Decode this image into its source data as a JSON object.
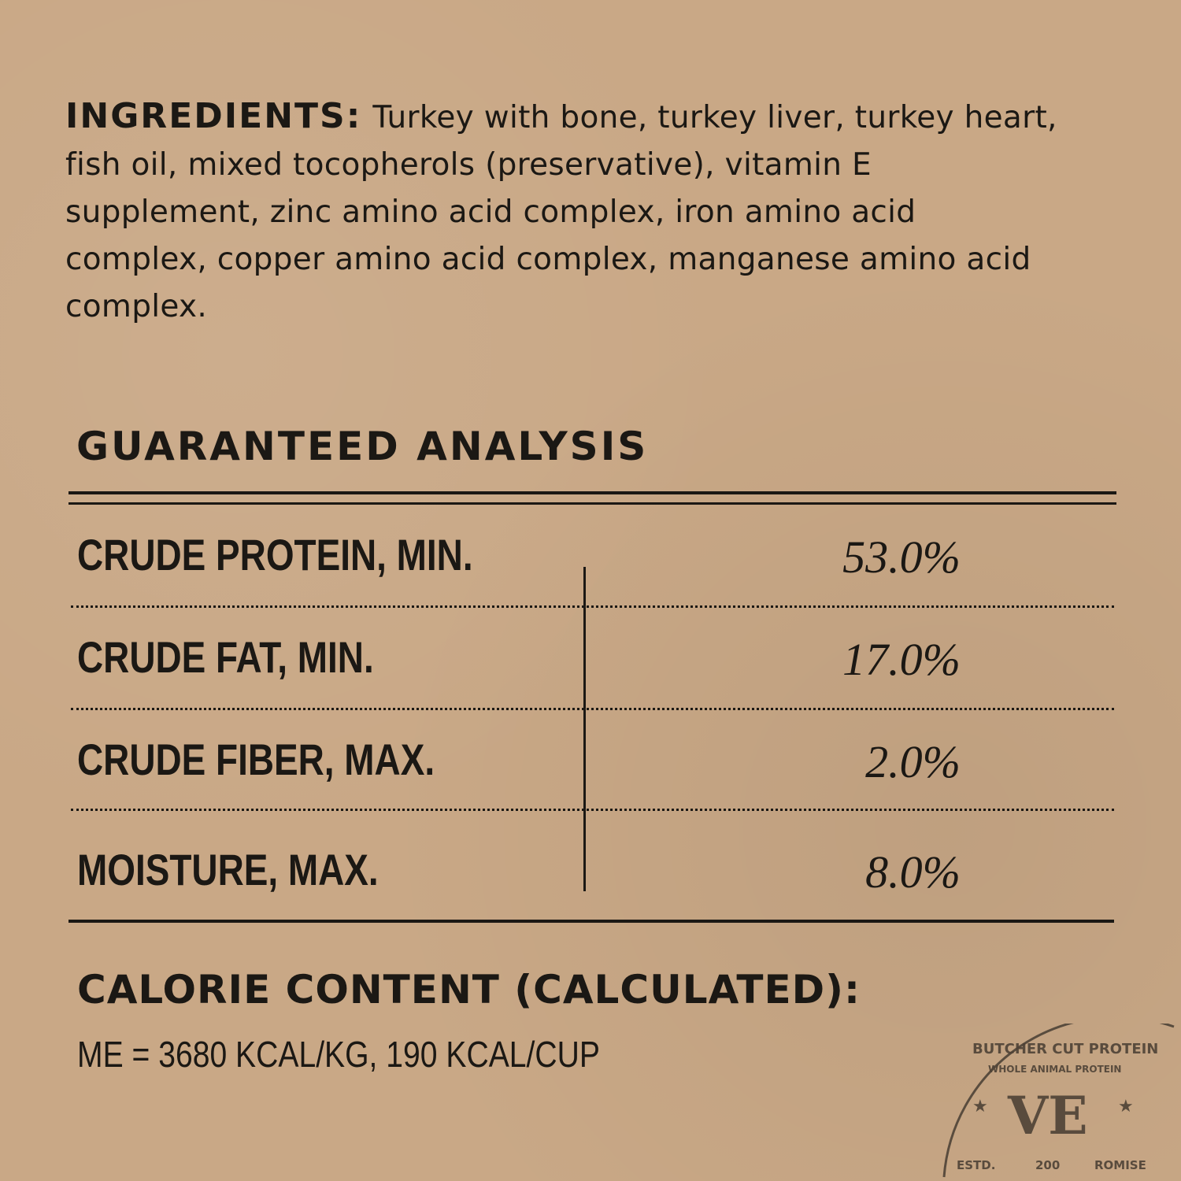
{
  "ingredients": {
    "heading": "INGREDIENTS:",
    "text": "Turkey with bone, turkey liver, turkey heart, fish oil, mixed tocopherols (preservative), vitamin E supplement, zinc amino acid complex, iron amino acid complex, copper amino acid complex, manganese amino acid complex."
  },
  "analysis": {
    "title": "GUARANTEED ANALYSIS",
    "rows": [
      {
        "label": "CRUDE PROTEIN, MIN.",
        "value": "53.0%"
      },
      {
        "label": "CRUDE FAT, MIN.",
        "value": "17.0%"
      },
      {
        "label": "CRUDE FIBER, MAX.",
        "value": "2.0%"
      },
      {
        "label": "MOISTURE, MAX.",
        "value": "8.0%"
      }
    ]
  },
  "calorie": {
    "title": "CALORIE CONTENT (CALCULATED):",
    "value": "ME = 3680 KCAL/KG, 190 KCAL/CUP"
  },
  "stamp": {
    "outer_text": "BUTCHER CUT PROTEIN",
    "inner_text": "WHOLE ANIMAL PROTEIN",
    "monogram": "VE",
    "estd": "ESTD.",
    "year_partial": "200",
    "bottom_partial": "ROMISE"
  },
  "colors": {
    "background": "#c9a886",
    "ink": "#1b1814",
    "stamp_ink": "#4e4236"
  }
}
